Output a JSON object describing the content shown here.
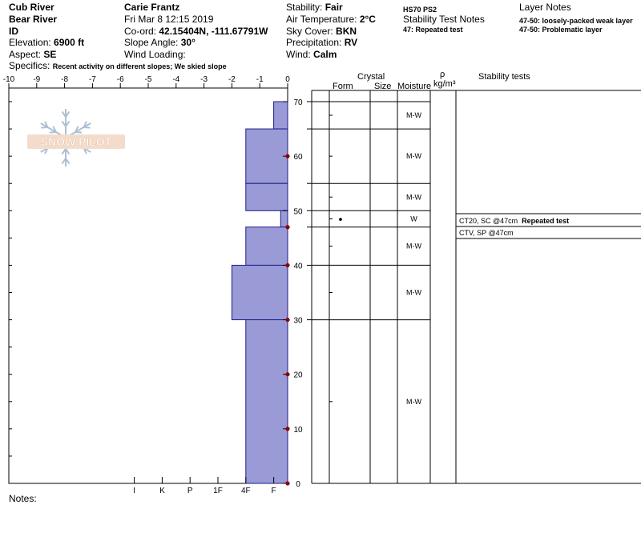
{
  "header": {
    "location": "Cub River",
    "range": "Bear River",
    "state": "ID",
    "elevation_label": "Elevation:",
    "elevation_value": "6900 ft",
    "aspect_label": "Aspect:",
    "aspect_value": "SE",
    "specifics_label": "Specifics:",
    "specifics_value": "Recent activity on different slopes; We skied slope",
    "observer": "Carie Frantz",
    "datetime": "Fri Mar 8 12:15 2019",
    "coord_label": "Co-ord:",
    "coord_value": "42.15404N, -111.67791W",
    "slope_label": "Slope Angle:",
    "slope_value": "30°",
    "wind_loading_label": "Wind Loading:",
    "stability_label": "Stability:",
    "stability_value": "Fair",
    "air_temp_label": "Air Temperature:",
    "air_temp_value": "2°C",
    "sky_label": "Sky Cover:",
    "sky_value": "BKN",
    "precip_label": "Precipitation:",
    "precip_value": "RV",
    "wind_label": "Wind:",
    "wind_value": "Calm",
    "hs_code": "HS70 PS2",
    "stability_notes_title": "Stability Test Notes",
    "stability_note_1": "47: Repeated test",
    "layer_notes_title": "Layer Notes",
    "layer_note_1": "47-50: loosely-packed weak layer",
    "layer_note_2": "47-50: Problematic layer",
    "notes_label": "Notes:",
    "logo_text": "SNOW PILOT"
  },
  "columns": {
    "crystal": "Crystal",
    "form": "Form",
    "size": "Size",
    "moisture": "Moisture",
    "rho": "ρ",
    "density_unit": "kg/m³",
    "stability_tests": "Stability tests"
  },
  "colors": {
    "bar_fill": "#9a9ad6",
    "bar_edge": "#1c1c8c",
    "temp_point": "#8b0000"
  },
  "chart_data": {
    "type": "bar",
    "temp_axis": {
      "min": -10,
      "max": 0,
      "ticks": [
        -10,
        -9,
        -8,
        -7,
        -6,
        -5,
        -4,
        -3,
        -2,
        -1,
        0
      ],
      "tick_labels": [
        "-10",
        "-9",
        "-8",
        "-7",
        "-6",
        "-5",
        "-4",
        "-3",
        "-2",
        "-1",
        "0"
      ]
    },
    "height_axis": {
      "min": 0,
      "max": 70,
      "ticks": [
        0,
        10,
        20,
        30,
        40,
        50,
        60,
        70
      ],
      "tick_labels": [
        "0",
        "10",
        "20",
        "30",
        "40",
        "50",
        "60",
        "70"
      ]
    },
    "hardness_labels": [
      {
        "label": "I",
        "value": 5.5
      },
      {
        "label": "K",
        "value": 4.5
      },
      {
        "label": "P",
        "value": 3.5
      },
      {
        "label": "1F",
        "value": 2.5
      },
      {
        "label": "4F",
        "value": 1.5
      },
      {
        "label": "F",
        "value": 0.5
      }
    ],
    "layers": [
      {
        "top": 70,
        "bottom": 65,
        "hardness": 0.5,
        "moisture": "M-W",
        "form": ""
      },
      {
        "top": 65,
        "bottom": 55,
        "hardness": 1.5,
        "moisture": "M-W",
        "form": ""
      },
      {
        "top": 55,
        "bottom": 50,
        "hardness": 1.5,
        "moisture": "M-W",
        "form": ""
      },
      {
        "top": 50,
        "bottom": 47,
        "hardness": 0.25,
        "moisture": "W",
        "form": "•"
      },
      {
        "top": 47,
        "bottom": 40,
        "hardness": 1.5,
        "moisture": "M-W",
        "form": ""
      },
      {
        "top": 40,
        "bottom": 30,
        "hardness": 2.0,
        "moisture": "M-W",
        "form": ""
      },
      {
        "top": 30,
        "bottom": 0,
        "hardness": 1.5,
        "moisture": "M-W",
        "form": ""
      }
    ],
    "temperature_profile": [
      {
        "height": 0,
        "temp": 0
      },
      {
        "height": 10,
        "temp": 0
      },
      {
        "height": 20,
        "temp": 0
      },
      {
        "height": 30,
        "temp": 0
      },
      {
        "height": 40,
        "temp": 0
      },
      {
        "height": 47,
        "temp": 0
      },
      {
        "height": 60,
        "temp": 0
      }
    ],
    "stability_tests": [
      {
        "height": 47,
        "text": "CT20, SC @47cm",
        "note": "Repeated test"
      },
      {
        "height": 45,
        "text": "CTV, SP @47cm",
        "note": ""
      }
    ]
  }
}
